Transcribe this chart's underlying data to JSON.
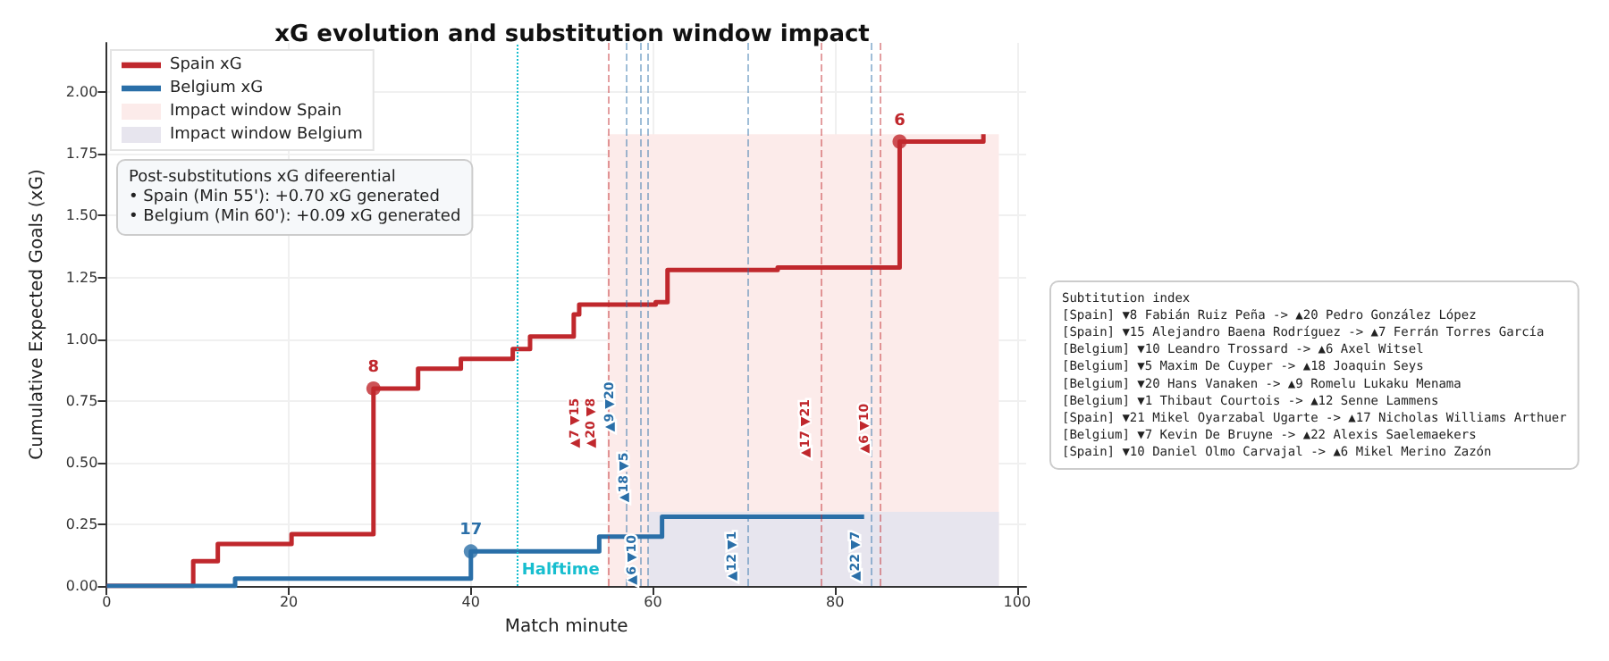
{
  "chart_data": {
    "type": "step",
    "title": "xG evolution and substitution window impact",
    "xlabel": "Match minute",
    "ylabel": "Cumulative Expected Goals (xG)",
    "series": [
      {
        "name": "Spain xG",
        "color": "#c0282d",
        "x": [
          0,
          9.5,
          12.2,
          20.3,
          29.3,
          34.2,
          38.9,
          44.6,
          46.5,
          51.3,
          51.9,
          60.3,
          61.6,
          73.7,
          87.1,
          96.3
        ],
        "values": [
          0,
          0.1,
          0.17,
          0.21,
          0.8,
          0.88,
          0.92,
          0.96,
          1.01,
          1.1,
          1.14,
          1.15,
          1.28,
          1.29,
          1.8,
          1.83
        ]
      },
      {
        "name": "Belgium xG",
        "color": "#2a6fa8",
        "x": [
          0,
          14.1,
          40.0,
          54.1,
          61.0,
          83.2
        ],
        "values": [
          0,
          0.03,
          0.14,
          0.2,
          0.28,
          0.28
        ]
      },
      {
        "type": "area",
        "name": "Impact window Spain",
        "color": "#fcebea",
        "x": [
          55,
          98
        ],
        "values": [
          1.83,
          1.83
        ]
      },
      {
        "type": "area",
        "name": "Impact window Belgium",
        "color": "#e7e5ee",
        "x": [
          59.5,
          98
        ],
        "values": [
          0.3,
          0.3
        ]
      },
      {
        "type": "scatter",
        "color": "#c0282d",
        "x": [
          29.3,
          87.1
        ],
        "values": [
          0.8,
          1.8
        ]
      },
      {
        "type": "scatter",
        "color": "#2a6fa8",
        "x": [
          40.0
        ],
        "values": [
          0.14
        ]
      }
    ],
    "xlim": [
      0,
      101
    ],
    "xticks": [
      0,
      20,
      40,
      60,
      80,
      100
    ],
    "ylim": [
      0,
      2.2
    ],
    "yticks": [
      {
        "value": 0,
        "label": "0.00"
      },
      {
        "value": 0.25,
        "label": "0.25"
      },
      {
        "value": 0.5,
        "label": "0.50"
      },
      {
        "value": 0.75,
        "label": "0.75"
      },
      {
        "value": 1,
        "label": "1.00"
      },
      {
        "value": 1.25,
        "label": "1.25"
      },
      {
        "value": 1.5,
        "label": "1.50"
      },
      {
        "value": 1.75,
        "label": "1.75"
      },
      {
        "value": 2,
        "label": "2.00"
      }
    ],
    "ref_lines": [
      {
        "axis": "x",
        "value": 45,
        "label": "Halftime",
        "color": "#17becf",
        "line_style": "dotted"
      },
      {
        "axis": "x",
        "value": 55,
        "label": "▲7 ▼15\n▲20 ▼8",
        "color": "#c0282d",
        "line_style": "dashed"
      },
      {
        "axis": "x",
        "value": 57,
        "label": "▲9 ▼20",
        "color": "#2a6fa8",
        "line_style": "dashed"
      },
      {
        "axis": "x",
        "value": 58.6,
        "label": "▲18 ▼5",
        "color": "#2a6fa8",
        "line_style": "dashed"
      },
      {
        "axis": "x",
        "value": 59.5,
        "label": "▲6 ▼10",
        "color": "#2a6fa8",
        "line_style": "dashed"
      },
      {
        "axis": "x",
        "value": 70.5,
        "label": "▲12 ▼1",
        "color": "#2a6fa8",
        "line_style": "dashed"
      },
      {
        "axis": "x",
        "value": 78.5,
        "label": "▲17 ▼21",
        "color": "#c0282d",
        "line_style": "dashed"
      },
      {
        "axis": "x",
        "value": 85,
        "label": "▲6 ▼10",
        "color": "#c0282d",
        "line_style": "dashed"
      },
      {
        "axis": "x",
        "value": 84,
        "label": "▲22 ▼7",
        "color": "#2a6fa8",
        "line_style": "dashed"
      }
    ],
    "annotations": [
      "Post-substitutions xG difeerential\n• Spain (Min 55'): +0.70 xG generated\n• Belgium (Min 60'): +0.09 xG generated",
      "Subtitution index\n[Spain] ▼8 Fabián Ruiz Peña -> ▲20 Pedro González López\n[Spain] ▼15 Alejandro Baena Rodríguez -> ▲7 Ferrán Torres García\n[Belgium] ▼10 Leandro Trossard -> ▲6 Axel Witsel\n[Belgium] ▼5 Maxim De Cuyper -> ▲18 Joaquin Seys\n[Belgium] ▼20 Hans Vanaken -> ▲9 Romelu Lukaku Menama\n[Belgium] ▼1 Thibaut Courtois -> ▲12 Senne Lammens\n[Spain] ▼21 Mikel Oyarzabal Ugarte -> ▲17 Nicholas Williams Arthuer\n[Belgium] ▼7 Kevin De Bruyne -> ▲22 Alexis Saelemaekers\n[Spain] ▼10 Daniel Olmo Carvajal -> ▲6 Mikel Merino Zazón",
      {
        "text": "8",
        "x": 29.3,
        "y": 0.8
      },
      {
        "text": "6",
        "x": 87.1,
        "y": 1.8
      },
      {
        "text": "17",
        "x": 40.0,
        "y": 0.14
      }
    ],
    "grid": true,
    "legend": "top left",
    "line_style": "solid"
  }
}
